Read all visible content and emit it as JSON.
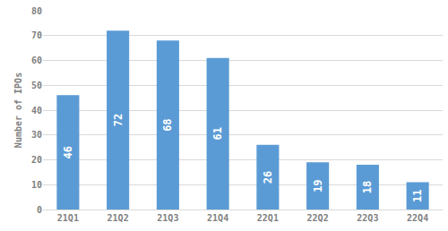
{
  "chart_data": {
    "type": "bar",
    "y_label": "Number of IPOs",
    "categories": [
      "21Q1",
      "21Q2",
      "21Q3",
      "21Q4",
      "22Q1",
      "22Q2",
      "22Q3",
      "22Q4"
    ],
    "values": [
      46,
      72,
      68,
      61,
      26,
      19,
      18,
      11
    ],
    "color": "#5b9bd5",
    "ylim": [
      0,
      80
    ],
    "yticks": [
      0,
      10,
      20,
      30,
      40,
      50,
      60,
      70,
      80
    ],
    "grid": true,
    "data_labels": true
  }
}
